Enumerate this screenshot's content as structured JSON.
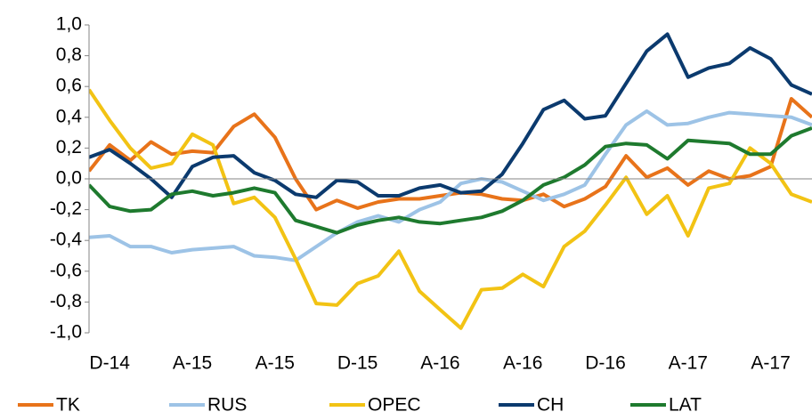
{
  "chart_data": {
    "type": "line",
    "categories": [
      null,
      "D-14",
      null,
      null,
      null,
      "A-15",
      null,
      null,
      null,
      "A-15",
      null,
      null,
      null,
      "D-15",
      null,
      null,
      null,
      "A-16",
      null,
      null,
      null,
      "A-16",
      null,
      null,
      null,
      "D-16",
      null,
      null,
      null,
      "A-17",
      null,
      null,
      null,
      "A-17",
      null,
      null
    ],
    "series": [
      {
        "name": "TK",
        "color": "#e8731a",
        "values": [
          0.05,
          0.22,
          0.12,
          0.24,
          0.16,
          0.18,
          0.17,
          0.34,
          0.42,
          0.27,
          0.0,
          -0.2,
          -0.14,
          -0.19,
          -0.15,
          -0.13,
          -0.13,
          -0.11,
          -0.09,
          -0.1,
          -0.13,
          -0.14,
          -0.1,
          -0.18,
          -0.13,
          -0.05,
          0.15,
          0.01,
          0.07,
          -0.04,
          0.05,
          0.0,
          0.02,
          0.08,
          0.52,
          0.4
        ]
      },
      {
        "name": "RUS",
        "color": "#9dc3e6",
        "values": [
          -0.38,
          -0.37,
          -0.44,
          -0.44,
          -0.48,
          -0.46,
          -0.45,
          -0.44,
          -0.5,
          -0.51,
          -0.53,
          -0.44,
          -0.35,
          -0.28,
          -0.24,
          -0.28,
          -0.2,
          -0.15,
          -0.03,
          0.0,
          -0.02,
          -0.08,
          -0.14,
          -0.1,
          -0.04,
          0.16,
          0.35,
          0.44,
          0.35,
          0.36,
          0.4,
          0.43,
          0.42,
          0.41,
          0.4,
          0.35
        ]
      },
      {
        "name": "OPEC",
        "color": "#f2c314",
        "values": [
          0.58,
          0.38,
          0.2,
          0.07,
          0.1,
          0.29,
          0.22,
          -0.16,
          -0.12,
          -0.25,
          -0.52,
          -0.81,
          -0.82,
          -0.68,
          -0.63,
          -0.47,
          -0.73,
          -0.85,
          -0.97,
          -0.72,
          -0.71,
          -0.62,
          -0.7,
          -0.44,
          -0.34,
          -0.17,
          0.01,
          -0.23,
          -0.11,
          -0.37,
          -0.06,
          -0.03,
          0.2,
          0.1,
          -0.1,
          -0.15
        ]
      },
      {
        "name": "CH",
        "color": "#0b3a6e",
        "values": [
          0.14,
          0.19,
          0.1,
          0.0,
          -0.12,
          0.08,
          0.14,
          0.15,
          0.04,
          -0.01,
          -0.1,
          -0.12,
          -0.01,
          -0.02,
          -0.11,
          -0.11,
          -0.06,
          -0.04,
          -0.09,
          -0.08,
          0.03,
          0.23,
          0.45,
          0.51,
          0.39,
          0.41,
          0.62,
          0.83,
          0.94,
          0.66,
          0.72,
          0.75,
          0.85,
          0.78,
          0.61,
          0.55
        ]
      },
      {
        "name": "LAT",
        "color": "#1e7a2e",
        "values": [
          -0.04,
          -0.18,
          -0.21,
          -0.2,
          -0.1,
          -0.08,
          -0.11,
          -0.09,
          -0.06,
          -0.09,
          -0.27,
          -0.31,
          -0.35,
          -0.3,
          -0.27,
          -0.25,
          -0.28,
          -0.29,
          -0.27,
          -0.25,
          -0.21,
          -0.14,
          -0.04,
          0.01,
          0.09,
          0.21,
          0.23,
          0.22,
          0.13,
          0.25,
          0.24,
          0.23,
          0.16,
          0.16,
          0.28,
          0.33
        ]
      }
    ],
    "ylim": [
      -1,
      1
    ],
    "yticks": [
      {
        "value": -1,
        "label": "-1,0"
      },
      {
        "value": -0.8,
        "label": "-0,8"
      },
      {
        "value": -0.6,
        "label": "-0,6"
      },
      {
        "value": -0.4,
        "label": "-0,4"
      },
      {
        "value": -0.2,
        "label": "-0,2"
      },
      {
        "value": 0,
        "label": "0,0"
      },
      {
        "value": 0.2,
        "label": "0,2"
      },
      {
        "value": 0.4,
        "label": "0,4"
      },
      {
        "value": 0.6,
        "label": "0,6"
      },
      {
        "value": 0.8,
        "label": "0,8"
      },
      {
        "value": 1,
        "label": "1,0"
      }
    ],
    "grid": false,
    "legend": "bottom"
  }
}
